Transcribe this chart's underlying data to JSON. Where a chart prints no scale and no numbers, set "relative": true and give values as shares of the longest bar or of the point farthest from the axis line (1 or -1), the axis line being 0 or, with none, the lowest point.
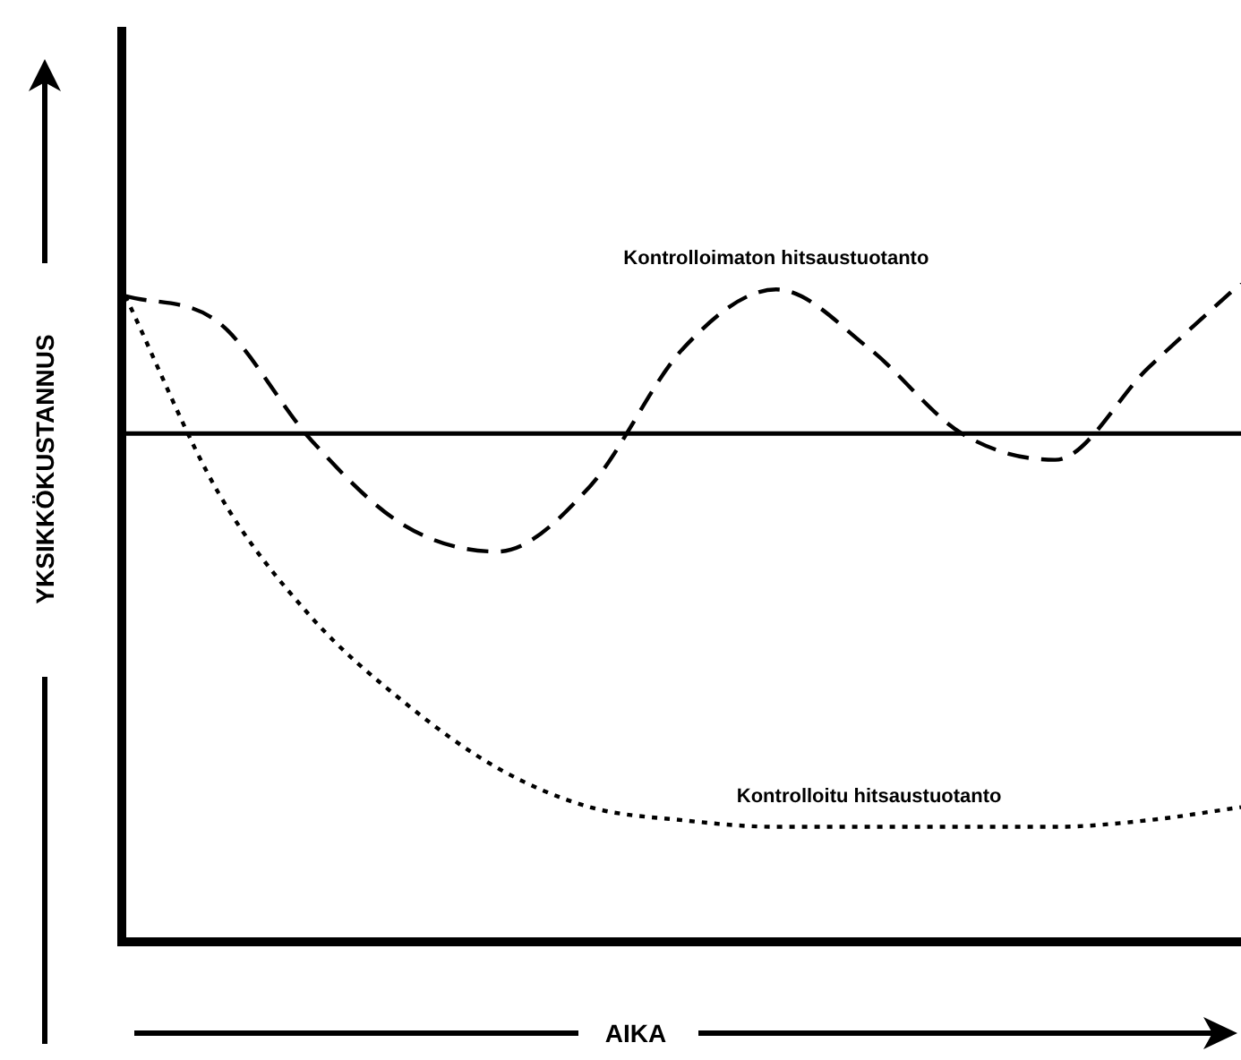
{
  "chart_data": {
    "type": "line",
    "relative": true,
    "xlabel": "AIKA",
    "ylabel": "YKSIKKÖKUSTANNUS",
    "categories": [
      null,
      null,
      null,
      null,
      null,
      null,
      null,
      null,
      null,
      null,
      null,
      null,
      null
    ],
    "series": [
      {
        "name": "Kontrolloimaton hitsaustuotanto",
        "color": "#000000",
        "line_style": "dashed",
        "values": [
          0.98,
          0.94,
          0.76,
          0.63,
          0.59,
          0.69,
          0.9,
          0.99,
          0.9,
          0.77,
          0.73,
          0.87,
          1.0
        ]
      },
      {
        "name": "Kontrolloitu hitsaustuotanto",
        "color": "#000000",
        "line_style": "dotted",
        "values": [
          0.98,
          0.68,
          0.49,
          0.36,
          0.26,
          0.2,
          0.18,
          0.17,
          0.17,
          0.17,
          0.17,
          0.18,
          0.2
        ]
      }
    ],
    "ref_lines": [
      {
        "axis": "y",
        "value": 0.77,
        "color": "#000000",
        "line_style": "solid"
      }
    ],
    "legend": false,
    "grid": false,
    "marker": "none"
  }
}
